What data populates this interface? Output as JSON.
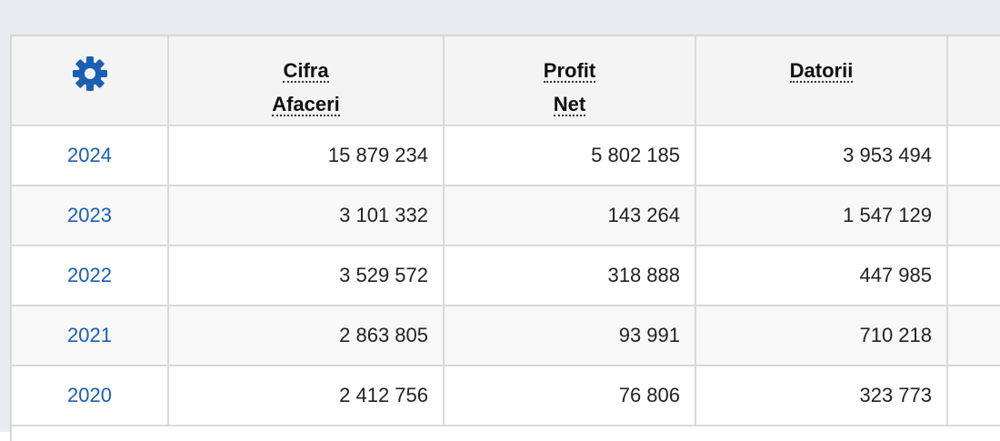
{
  "colors": {
    "accent": "#1a5fb4",
    "header_bg": "#f4f4f4",
    "page_bg": "#e9ebee",
    "grid": "#d9d9d9"
  },
  "settings_icon": "gear-icon",
  "headers": [
    {
      "lines": [
        "Cifra",
        "Afaceri"
      ]
    },
    {
      "lines": [
        "Profit",
        "Net"
      ]
    },
    {
      "lines": [
        "Datorii"
      ]
    }
  ],
  "rows": [
    {
      "year": "2024",
      "cifra_afaceri": "15 879 234",
      "profit_net": "5 802 185",
      "datorii": "3 953 494"
    },
    {
      "year": "2023",
      "cifra_afaceri": "3 101 332",
      "profit_net": "143 264",
      "datorii": "1 547 129"
    },
    {
      "year": "2022",
      "cifra_afaceri": "3 529 572",
      "profit_net": "318 888",
      "datorii": "447 985"
    },
    {
      "year": "2021",
      "cifra_afaceri": "2 863 805",
      "profit_net": "93 991",
      "datorii": "710 218"
    },
    {
      "year": "2020",
      "cifra_afaceri": "2 412 756",
      "profit_net": "76 806",
      "datorii": "323 773"
    }
  ]
}
